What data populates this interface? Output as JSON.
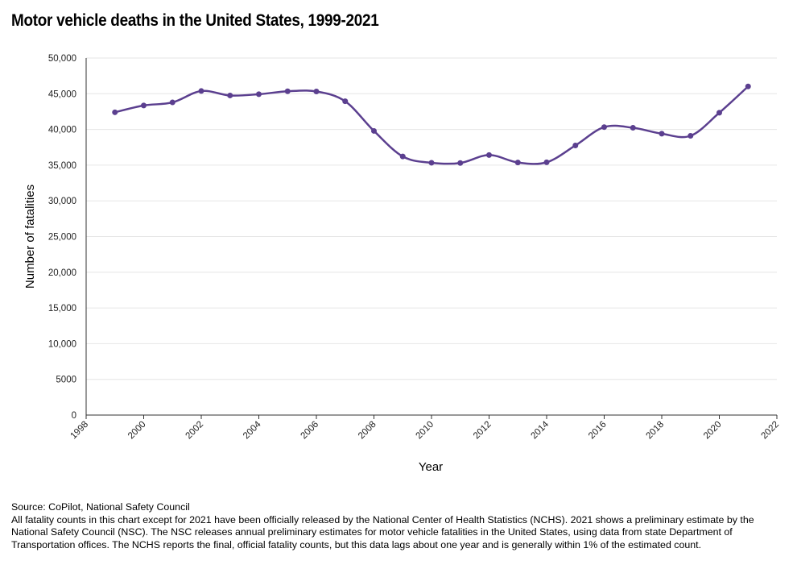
{
  "title": "Motor vehicle deaths in the United States, 1999-2021",
  "chart_data": {
    "type": "line",
    "title": "Motor vehicle deaths in the United States, 1999-2021",
    "xlabel": "Year",
    "ylabel": "Number of fatalities",
    "xlim": [
      1998,
      2022
    ],
    "ylim": [
      0,
      50000
    ],
    "x_ticks": [
      "1998",
      "2000",
      "2002",
      "2004",
      "2006",
      "2008",
      "2010",
      "2012",
      "2014",
      "2016",
      "2018",
      "2020",
      "2022"
    ],
    "y_ticks": [
      "0",
      "5000",
      "10,000",
      "15,000",
      "20,000",
      "25,000",
      "30,000",
      "35,000",
      "40,000",
      "45,000",
      "50,000"
    ],
    "grid": "horizontal",
    "line_color": "#5b3f8f",
    "x": [
      1999,
      2000,
      2001,
      2002,
      2003,
      2004,
      2005,
      2006,
      2007,
      2008,
      2009,
      2010,
      2011,
      2012,
      2013,
      2014,
      2015,
      2016,
      2017,
      2018,
      2019,
      2020,
      2021
    ],
    "y": [
      42401,
      43354,
      43788,
      45380,
      44757,
      44933,
      45343,
      45316,
      43945,
      39790,
      36216,
      35332,
      35303,
      36415,
      35369,
      35398,
      37757,
      40327,
      40231,
      39404,
      39107,
      42339,
      46020
    ]
  },
  "notes": {
    "source": "Source: CoPilot, National Safety Council",
    "text": "All fatality counts in this chart except for 2021 have been officially released by the National Center of Health Statistics (NCHS). 2021 shows a preliminary estimate by the National Safety Council (NSC). The NSC releases annual preliminary estimates for motor vehicle fatalities in the United States, using data from state Department of Transportation offices. The NCHS reports the final, official fatality counts, but this data lags about one year and is generally within 1% of the estimated count."
  }
}
